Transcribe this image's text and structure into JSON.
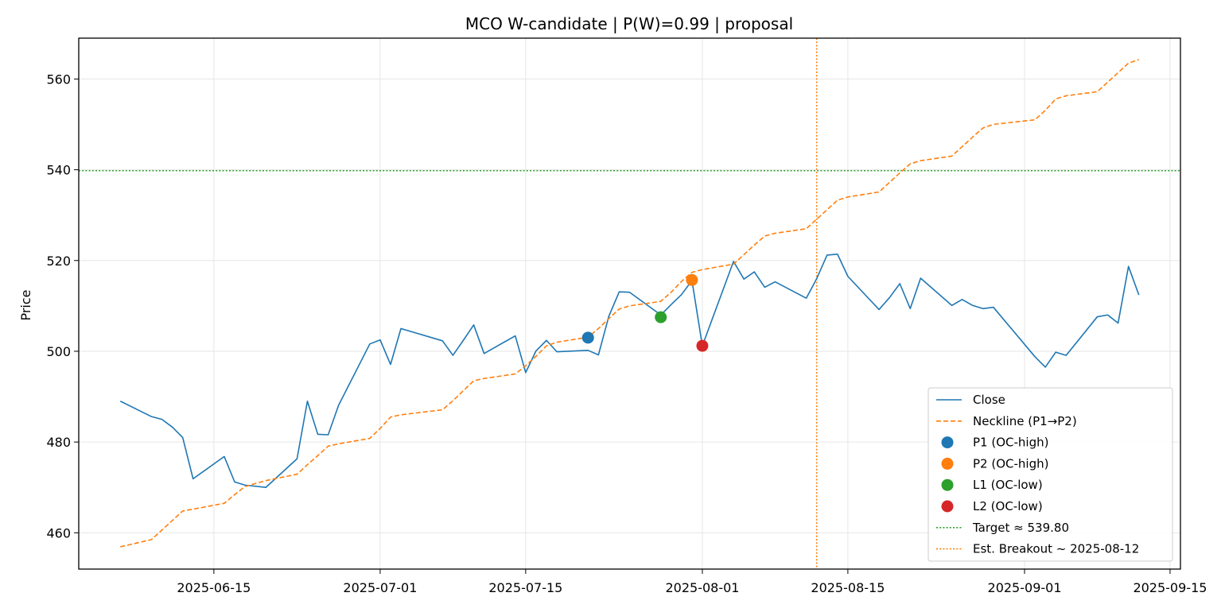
{
  "chart_data": {
    "type": "line",
    "title": "MCO W-candidate | P(W)=0.99 | proposal",
    "xlabel": "",
    "ylabel": "Price",
    "x_type": "date",
    "xlim": [
      "2025-06-02",
      "2025-09-16"
    ],
    "ylim": [
      452,
      569
    ],
    "x_ticks": [
      "2025-06-15",
      "2025-07-01",
      "2025-07-15",
      "2025-08-01",
      "2025-08-15",
      "2025-09-01",
      "2025-09-15"
    ],
    "y_ticks": [
      460,
      480,
      500,
      520,
      540,
      560
    ],
    "grid": true,
    "legend_position": "lower-right",
    "colors": {
      "close": "#1f77b4",
      "neckline": "#ff7f0e",
      "p1": "#1f77b4",
      "p2": "#ff7f0e",
      "l1": "#2ca02c",
      "l2": "#d62728",
      "target": "#2ca02c",
      "breakout": "#ff7f0e"
    },
    "series": [
      {
        "name": "Close",
        "style": "solid",
        "x": [
          "2025-06-06",
          "2025-06-09",
          "2025-06-10",
          "2025-06-11",
          "2025-06-12",
          "2025-06-13",
          "2025-06-16",
          "2025-06-17",
          "2025-06-18",
          "2025-06-20",
          "2025-06-23",
          "2025-06-24",
          "2025-06-25",
          "2025-06-26",
          "2025-06-27",
          "2025-06-30",
          "2025-07-01",
          "2025-07-02",
          "2025-07-03",
          "2025-07-07",
          "2025-07-08",
          "2025-07-09",
          "2025-07-10",
          "2025-07-11",
          "2025-07-14",
          "2025-07-15",
          "2025-07-16",
          "2025-07-17",
          "2025-07-18",
          "2025-07-21",
          "2025-07-22",
          "2025-07-23",
          "2025-07-24",
          "2025-07-25",
          "2025-07-28",
          "2025-07-29",
          "2025-07-30",
          "2025-07-31",
          "2025-08-01",
          "2025-08-04",
          "2025-08-05",
          "2025-08-06",
          "2025-08-07",
          "2025-08-08",
          "2025-08-11",
          "2025-08-12",
          "2025-08-13",
          "2025-08-14",
          "2025-08-15",
          "2025-08-18",
          "2025-08-19",
          "2025-08-20",
          "2025-08-21",
          "2025-08-22",
          "2025-08-25",
          "2025-08-26",
          "2025-08-27",
          "2025-08-28",
          "2025-08-29",
          "2025-09-02",
          "2025-09-03",
          "2025-09-04",
          "2025-09-05",
          "2025-09-08",
          "2025-09-09",
          "2025-09-10",
          "2025-09-11",
          "2025-09-12"
        ],
        "values": [
          489.0,
          485.6,
          485.0,
          483.3,
          481.0,
          471.9,
          476.8,
          471.2,
          470.5,
          470.0,
          476.3,
          489.0,
          481.7,
          481.6,
          488.1,
          501.6,
          502.5,
          497.1,
          505.0,
          502.3,
          499.1,
          502.4,
          505.8,
          499.5,
          503.4,
          495.3,
          500.1,
          502.4,
          499.9,
          500.2,
          499.2,
          507.7,
          513.1,
          513.0,
          508.0,
          510.3,
          512.5,
          515.6,
          501.2,
          519.8,
          515.9,
          517.5,
          514.1,
          515.3,
          511.7,
          516.0,
          521.2,
          521.4,
          516.5,
          509.2,
          511.8,
          514.9,
          509.4,
          516.1,
          510.1,
          511.4,
          510.1,
          509.4,
          509.7,
          498.8,
          496.5,
          499.8,
          499.1,
          507.6,
          508.0,
          506.2,
          518.7,
          512.4
        ]
      },
      {
        "name": "Neckline (P1→P2)",
        "style": "dashed",
        "x": [
          "2025-06-06",
          "2025-06-09",
          "2025-06-10",
          "2025-06-11",
          "2025-06-12",
          "2025-06-13",
          "2025-06-16",
          "2025-06-17",
          "2025-06-18",
          "2025-06-20",
          "2025-06-23",
          "2025-06-24",
          "2025-06-25",
          "2025-06-26",
          "2025-06-27",
          "2025-06-30",
          "2025-07-01",
          "2025-07-02",
          "2025-07-03",
          "2025-07-07",
          "2025-07-08",
          "2025-07-09",
          "2025-07-10",
          "2025-07-11",
          "2025-07-14",
          "2025-07-15",
          "2025-07-16",
          "2025-07-17",
          "2025-07-18",
          "2025-07-21",
          "2025-07-22",
          "2025-07-23",
          "2025-07-24",
          "2025-07-25",
          "2025-07-28",
          "2025-07-29",
          "2025-07-30",
          "2025-07-31",
          "2025-08-01",
          "2025-08-04",
          "2025-08-05",
          "2025-08-06",
          "2025-08-07",
          "2025-08-08",
          "2025-08-11",
          "2025-08-12",
          "2025-08-13",
          "2025-08-14",
          "2025-08-15",
          "2025-08-18",
          "2025-08-19",
          "2025-08-20",
          "2025-08-21",
          "2025-08-22",
          "2025-08-25",
          "2025-08-26",
          "2025-08-27",
          "2025-08-28",
          "2025-08-29",
          "2025-09-02",
          "2025-09-03",
          "2025-09-04",
          "2025-09-05",
          "2025-09-08",
          "2025-09-09",
          "2025-09-10",
          "2025-09-11",
          "2025-09-12"
        ],
        "values": [
          456.9,
          458.5,
          460.6,
          462.7,
          464.8,
          465.2,
          466.5,
          468.4,
          470.2,
          471.5,
          472.9,
          475.0,
          477.0,
          479.1,
          479.6,
          480.8,
          483.0,
          485.5,
          486.0,
          487.1,
          489.1,
          491.3,
          493.5,
          494.0,
          495.0,
          496.8,
          498.9,
          501.2,
          502.0,
          503.1,
          505.0,
          507.2,
          509.3,
          510.0,
          511.0,
          513.0,
          515.4,
          517.4,
          518.0,
          519.2,
          521.3,
          523.4,
          525.4,
          526.0,
          527.0,
          529.1,
          531.2,
          533.3,
          534.0,
          535.1,
          537.2,
          539.3,
          541.3,
          542.0,
          543.0,
          545.1,
          547.2,
          549.2,
          550.0,
          551.0,
          553.1,
          555.6,
          556.3,
          557.2,
          559.3,
          561.4,
          563.5,
          564.3
        ]
      }
    ],
    "markers": [
      {
        "name": "P1 (OC-high)",
        "x": "2025-07-21",
        "y": 503.0
      },
      {
        "name": "P2 (OC-high)",
        "x": "2025-07-31",
        "y": 515.7
      },
      {
        "name": "L1 (OC-low)",
        "x": "2025-07-28",
        "y": 507.5
      },
      {
        "name": "L2 (OC-low)",
        "x": "2025-08-01",
        "y": 501.2
      }
    ],
    "hlines": [
      {
        "name": "Target ≈ 539.80",
        "y": 539.8,
        "style": "dotted"
      }
    ],
    "vlines": [
      {
        "name": "Est. Breakout ~ 2025-08-12",
        "x": "2025-08-12",
        "style": "dotted"
      }
    ],
    "legend": [
      {
        "label": "Close",
        "kind": "line-solid",
        "color_key": "close"
      },
      {
        "label": "Neckline (P1→P2)",
        "kind": "line-dashed",
        "color_key": "neckline"
      },
      {
        "label": "P1 (OC-high)",
        "kind": "marker",
        "color_key": "p1"
      },
      {
        "label": "P2 (OC-high)",
        "kind": "marker",
        "color_key": "p2"
      },
      {
        "label": "L1 (OC-low)",
        "kind": "marker",
        "color_key": "l1"
      },
      {
        "label": "L2 (OC-low)",
        "kind": "marker",
        "color_key": "l2"
      },
      {
        "label": "Target ≈ 539.80",
        "kind": "line-dotted",
        "color_key": "target"
      },
      {
        "label": "Est. Breakout ~ 2025-08-12",
        "kind": "line-dotted",
        "color_key": "breakout"
      }
    ]
  }
}
